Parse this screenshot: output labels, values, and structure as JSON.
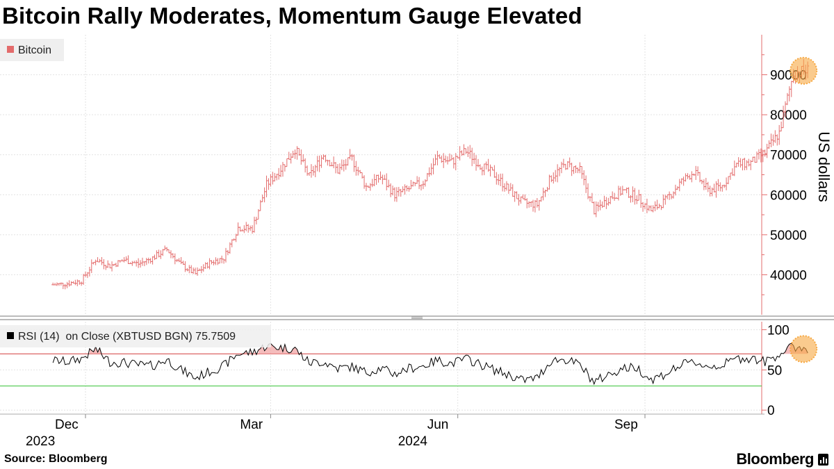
{
  "title": "Bitcoin Rally Moderates, Momentum Gauge Elevated",
  "source": "Source: Bloomberg",
  "brand": "Bloomberg",
  "colors": {
    "price": "#e36b6b",
    "price_fill": "#f4a3a3",
    "rsi": "#000000",
    "overbought": "#d33b3b",
    "oversold": "#39c339",
    "highlight": "#f7a942"
  },
  "chart_data": [
    {
      "type": "line",
      "panel": "price",
      "legend": "Bitcoin",
      "legend_position": "top-left",
      "ylabel": "US dollars",
      "ylim": [
        30000,
        100000
      ],
      "yticks": [
        40000,
        50000,
        60000,
        70000,
        80000,
        90000
      ],
      "grid": true,
      "x": [
        "2023-11-15",
        "2023-11-22",
        "2023-11-29",
        "2023-12-06",
        "2023-12-13",
        "2023-12-20",
        "2023-12-27",
        "2024-01-03",
        "2024-01-10",
        "2024-01-17",
        "2024-01-24",
        "2024-01-31",
        "2024-02-07",
        "2024-02-14",
        "2024-02-21",
        "2024-02-28",
        "2024-03-06",
        "2024-03-13",
        "2024-03-20",
        "2024-03-27",
        "2024-04-03",
        "2024-04-10",
        "2024-04-17",
        "2024-04-24",
        "2024-05-01",
        "2024-05-08",
        "2024-05-15",
        "2024-05-22",
        "2024-05-29",
        "2024-06-05",
        "2024-06-12",
        "2024-06-19",
        "2024-06-26",
        "2024-07-03",
        "2024-07-10",
        "2024-07-17",
        "2024-07-24",
        "2024-07-31",
        "2024-08-07",
        "2024-08-14",
        "2024-08-21",
        "2024-08-28",
        "2024-09-04",
        "2024-09-11",
        "2024-09-18",
        "2024-09-25",
        "2024-10-02",
        "2024-10-09",
        "2024-10-16",
        "2024-10-23",
        "2024-10-30",
        "2024-11-06",
        "2024-11-13",
        "2024-11-20"
      ],
      "values": [
        37500,
        37800,
        38500,
        43800,
        42200,
        43700,
        42700,
        44200,
        46300,
        42500,
        40200,
        43000,
        44200,
        51800,
        51500,
        62500,
        66500,
        71500,
        64500,
        70000,
        66000,
        69000,
        62000,
        64500,
        60000,
        61500,
        63200,
        69300,
        68200,
        71000,
        67500,
        65000,
        61300,
        58000,
        57500,
        64500,
        67500,
        66000,
        56000,
        59000,
        61000,
        59500,
        56000,
        58500,
        62800,
        65800,
        61000,
        62200,
        67500,
        68000,
        70500,
        75500,
        90500,
        91000
      ]
    },
    {
      "type": "line",
      "panel": "rsi",
      "legend": "RSI (14)  on Close (XBTUSD BGN) 75.7509",
      "ylim": [
        -5,
        110
      ],
      "yticks": [
        0,
        50,
        100
      ],
      "overbought": 70,
      "oversold": 30,
      "x_tick_labels": [
        {
          "month": "Dec",
          "year": "2023",
          "date": "2023-12-01"
        },
        {
          "month": "Mar",
          "year": "",
          "date": "2024-03-01"
        },
        {
          "month": "Jun",
          "year": "2024",
          "date": "2024-06-01"
        },
        {
          "month": "Sep",
          "year": "",
          "date": "2024-09-01"
        }
      ],
      "values": [
        62,
        60,
        64,
        76,
        60,
        59,
        56,
        55,
        63,
        50,
        40,
        48,
        55,
        70,
        72,
        80,
        78,
        76,
        59,
        60,
        52,
        54,
        47,
        52,
        45,
        52,
        55,
        62,
        58,
        64,
        57,
        50,
        44,
        37,
        40,
        62,
        63,
        56,
        35,
        44,
        52,
        53,
        38,
        45,
        55,
        60,
        54,
        56,
        64,
        65,
        60,
        70,
        79,
        76
      ]
    }
  ]
}
